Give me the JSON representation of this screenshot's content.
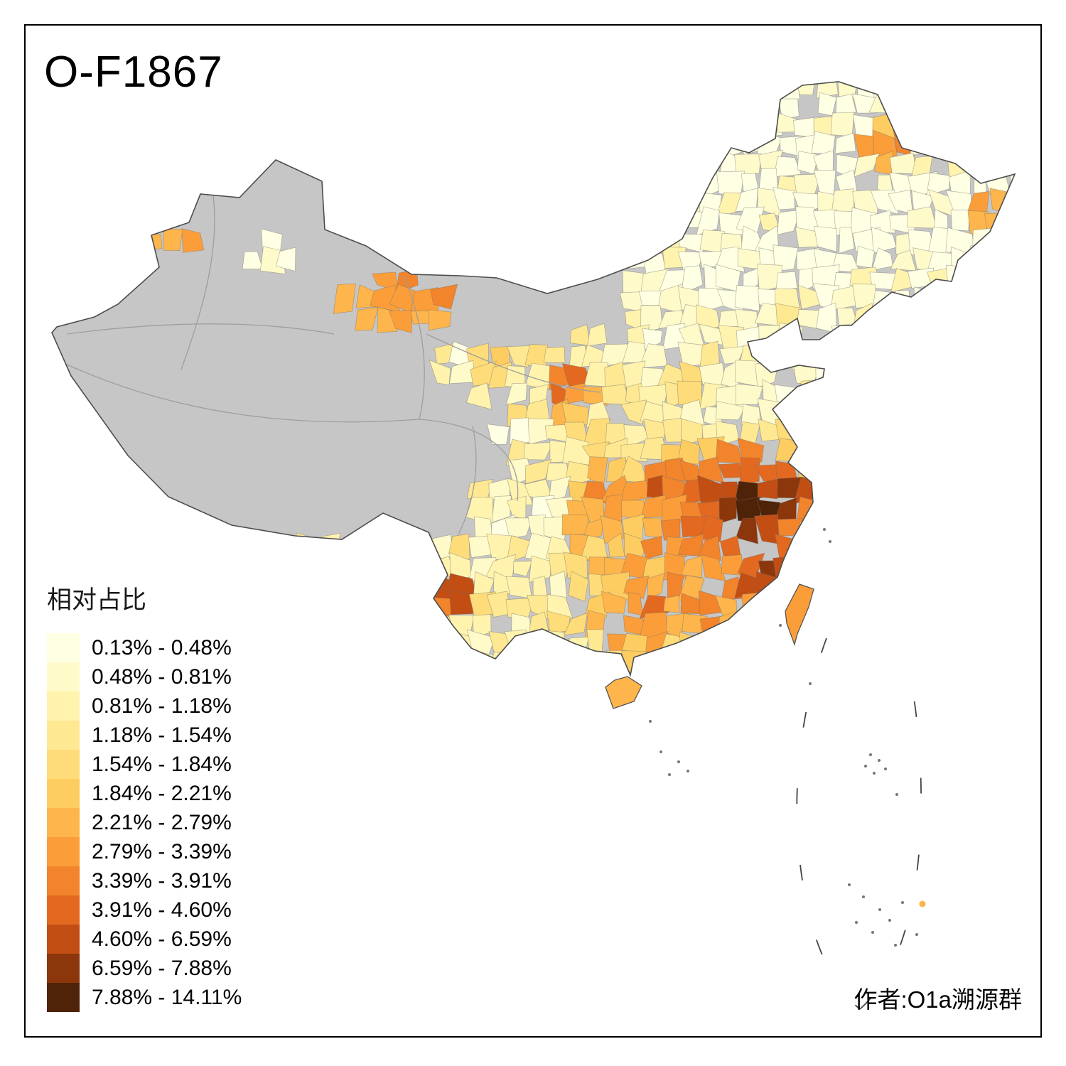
{
  "title": "O-F1867",
  "legend": {
    "title": "相对占比",
    "no_data_color": "#C6C6C6",
    "bins": [
      {
        "label": "0.13% - 0.48%",
        "color": "#FFFFE3"
      },
      {
        "label": "0.48% - 0.81%",
        "color": "#FFFAC9"
      },
      {
        "label": "0.81% - 1.18%",
        "color": "#FFF3AE"
      },
      {
        "label": "1.18% - 1.54%",
        "color": "#FEE892"
      },
      {
        "label": "1.54% - 1.84%",
        "color": "#FEDC79"
      },
      {
        "label": "1.84% - 2.21%",
        "color": "#FECD61"
      },
      {
        "label": "2.21% - 2.79%",
        "color": "#FEB54B"
      },
      {
        "label": "2.79% - 3.39%",
        "color": "#FB9E3A"
      },
      {
        "label": "3.39% - 3.91%",
        "color": "#F2842C"
      },
      {
        "label": "3.91% - 4.60%",
        "color": "#E2691F"
      },
      {
        "label": "4.60% - 6.59%",
        "color": "#C24E14"
      },
      {
        "label": "6.59% - 7.88%",
        "color": "#8C360C"
      },
      {
        "label": "7.88% - 14.11%",
        "color": "#4F2308"
      }
    ]
  },
  "map": {
    "outline_color": "#4d4d4d",
    "border_line_color": "#9e9e9e"
  },
  "attribution": "作者:O1a溯源群"
}
